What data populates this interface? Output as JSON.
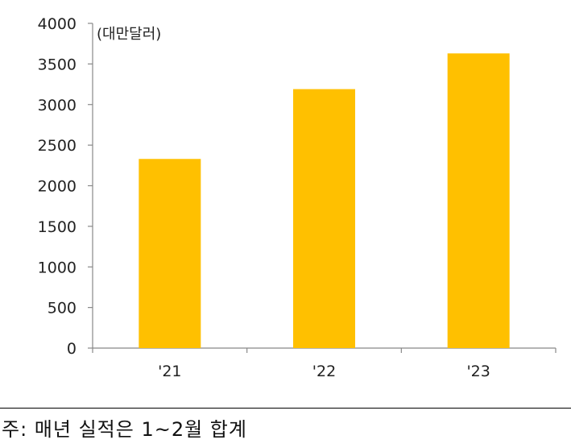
{
  "chart_data": {
    "type": "bar",
    "unit_label": "(대만달러)",
    "categories": [
      "'21",
      "'22",
      "'23"
    ],
    "values": [
      2330,
      3190,
      3630
    ],
    "ylim": [
      0,
      4000
    ],
    "yticks": [
      0,
      500,
      1000,
      1500,
      2000,
      2500,
      3000,
      3500,
      4000
    ],
    "grid": false,
    "bar_color": "#FFC000"
  },
  "footnote": "주: 매년 실적은 1~2월 합계"
}
